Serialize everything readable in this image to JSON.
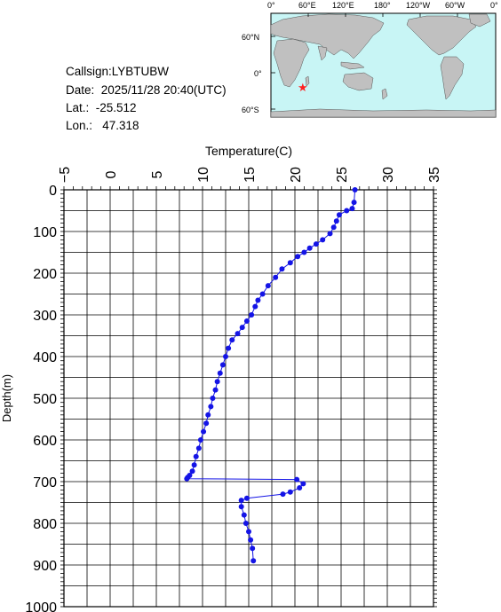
{
  "station": {
    "callsign": "Callsign:LYBTUBW",
    "date": "Date:  2025/11/28 20:40(UTC)",
    "lat": "Lat.:  -25.512",
    "lon": "Lon.:   47.318"
  },
  "map": {
    "top_labels": [
      "0°",
      "60°E",
      "120°E",
      "180°",
      "120°W",
      "60°W",
      "0°"
    ],
    "side_labels": [
      "60°N",
      "0°",
      "60°S"
    ],
    "ocean_color": "#c8f5f5",
    "land_color": "#c0c0c0",
    "marker_color": "#ff2020",
    "marker_lon": 47.318,
    "marker_lat": -25.512
  },
  "chart_data": {
    "type": "line",
    "xlabel": "Temperature(C)",
    "ylabel": "Depth(m)",
    "xlim": [
      -5,
      35
    ],
    "ylim": [
      0,
      1000
    ],
    "y_inverted": true,
    "x_ticks": [
      -5,
      0,
      5,
      10,
      15,
      20,
      25,
      30,
      35
    ],
    "y_ticks": [
      0,
      100,
      200,
      300,
      400,
      500,
      600,
      700,
      800,
      900,
      1000
    ],
    "grid": true,
    "line_color": "#1414e6",
    "series": [
      {
        "x": [
          26.5,
          26.4,
          26.2,
          25.6,
          24.8,
          24.5,
          24.2,
          23.8,
          23.0,
          22.3,
          21.6,
          21.0,
          20.3,
          19.5,
          18.6,
          17.9,
          17.1,
          16.5,
          16.0,
          15.7,
          15.3,
          14.8,
          14.3,
          13.8,
          13.2,
          12.8,
          12.5,
          12.2,
          11.9,
          11.6,
          11.4,
          11.1,
          10.9,
          10.6,
          10.4,
          10.1,
          9.8,
          9.6,
          9.3,
          9.1,
          8.9,
          8.6,
          8.4,
          8.3,
          20.2,
          20.9,
          20.5,
          19.5,
          18.7,
          14.8,
          14.2,
          14.2,
          14.5,
          14.7,
          15.0,
          15.2,
          15.4,
          15.5
        ],
        "y": [
          0,
          30,
          45,
          50,
          60,
          75,
          90,
          105,
          120,
          130,
          140,
          150,
          160,
          175,
          190,
          210,
          230,
          250,
          265,
          280,
          300,
          315,
          330,
          345,
          360,
          380,
          400,
          420,
          440,
          460,
          480,
          500,
          520,
          540,
          560,
          580,
          600,
          620,
          640,
          660,
          675,
          685,
          690,
          693,
          695,
          705,
          715,
          725,
          730,
          740,
          745,
          760,
          780,
          800,
          820,
          840,
          860,
          890
        ]
      }
    ]
  }
}
